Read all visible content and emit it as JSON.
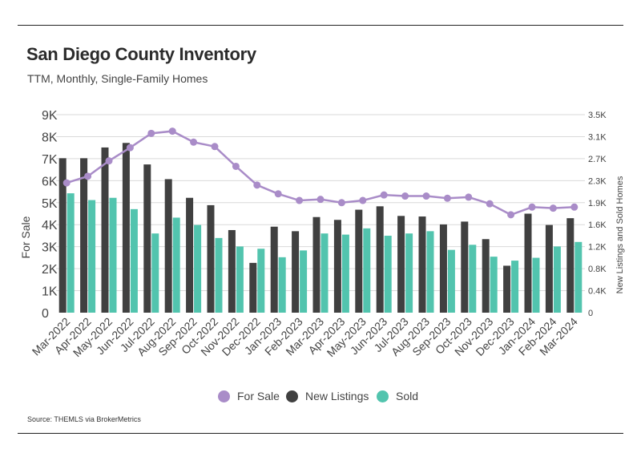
{
  "header": {
    "title": "San Diego County Inventory",
    "subtitle": "TTM, Monthly, Single-Family Homes"
  },
  "footer": {
    "source": "Source:  THEMLS via BrokerMetrics"
  },
  "colors": {
    "for_sale": "#a98cc8",
    "new_listings": "#404040",
    "sold": "#52c4ae",
    "grid": "#d9d9d9"
  },
  "chart_data": {
    "type": "bar",
    "title": "San Diego County Inventory",
    "subtitle": "TTM, Monthly, Single-Family Homes",
    "ylabel_left": "For Sale",
    "ylabel_right": "New Listings and Sold Homes",
    "categories": [
      "Mar-2022",
      "Apr-2022",
      "May-2022",
      "Jun-2022",
      "Jul-2022",
      "Aug-2022",
      "Sep-2022",
      "Oct-2022",
      "Nov-2022",
      "Dec-2022",
      "Jan-2023",
      "Feb-2023",
      "Mar-2023",
      "Apr-2023",
      "May-2023",
      "Jun-2023",
      "Jul-2023",
      "Aug-2023",
      "Sep-2023",
      "Oct-2023",
      "Nov-2023",
      "Dec-2023",
      "Jan-2024",
      "Feb-2024",
      "Mar-2024"
    ],
    "left_axis": {
      "ticks": [
        "0",
        "1K",
        "2K",
        "3K",
        "4K",
        "5K",
        "6K",
        "7K",
        "8K",
        "9K"
      ],
      "ylim": [
        0,
        9000
      ]
    },
    "right_axis": {
      "ticks": [
        "0",
        "0.4K",
        "0.8K",
        "1.2K",
        "1.6K",
        "1.9K",
        "2.3K",
        "2.7K",
        "3.1K",
        "3.5K"
      ],
      "ylim": [
        0,
        3500
      ]
    },
    "series": [
      {
        "name": "For Sale",
        "kind": "line",
        "axis": "left",
        "values": [
          5900,
          6200,
          6900,
          7500,
          8150,
          8250,
          7750,
          7550,
          6650,
          5800,
          5400,
          5100,
          5150,
          5000,
          5100,
          5350,
          5300,
          5300,
          5200,
          5250,
          4950,
          4450,
          4800,
          4750,
          4800
        ]
      },
      {
        "name": "New Listings",
        "kind": "bar",
        "axis": "right",
        "values": [
          2730,
          2730,
          2920,
          3000,
          2620,
          2360,
          2030,
          1900,
          1460,
          880,
          1520,
          1440,
          1690,
          1640,
          1820,
          1880,
          1710,
          1700,
          1560,
          1610,
          1300,
          830,
          1750,
          1550,
          1670
        ]
      },
      {
        "name": "Sold",
        "kind": "bar",
        "axis": "right",
        "values": [
          2110,
          1990,
          2030,
          1830,
          1400,
          1680,
          1550,
          1320,
          1170,
          1130,
          980,
          1100,
          1400,
          1380,
          1490,
          1360,
          1400,
          1440,
          1110,
          1200,
          990,
          920,
          970,
          1170,
          1250
        ]
      }
    ],
    "legend": {
      "placement": "bottom",
      "items": [
        "For Sale",
        "New Listings",
        "Sold"
      ]
    },
    "grid": true
  }
}
